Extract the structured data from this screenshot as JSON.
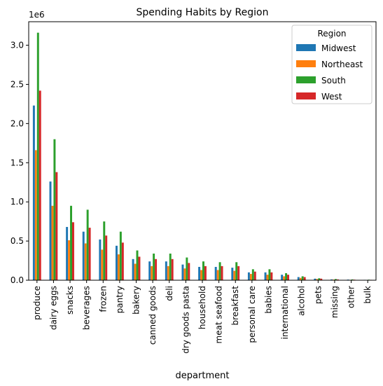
{
  "chart_data": {
    "type": "bar",
    "title": "Spending Habits by Region",
    "xlabel": "department",
    "ylabel": "",
    "y_offset_label": "1e6",
    "ylim": [
      0,
      3.3
    ],
    "yticks": [
      "0.0",
      "0.5",
      "1.0",
      "1.5",
      "2.0",
      "2.5",
      "3.0"
    ],
    "grid": false,
    "legend": {
      "title": "Region",
      "placement": "top-right"
    },
    "categories": [
      "produce",
      "dairy eggs",
      "snacks",
      "beverages",
      "frozen",
      "pantry",
      "bakery",
      "canned goods",
      "deli",
      "dry goods pasta",
      "household",
      "meat seafood",
      "breakfast",
      "personal care",
      "babies",
      "international",
      "alcohol",
      "pets",
      "missing",
      "other",
      "bulk"
    ],
    "series": [
      {
        "name": "Midwest",
        "color": "#1f77b4",
        "values": [
          2.23,
          1.26,
          0.68,
          0.62,
          0.52,
          0.44,
          0.27,
          0.24,
          0.24,
          0.2,
          0.17,
          0.17,
          0.16,
          0.1,
          0.1,
          0.07,
          0.04,
          0.02,
          0.01,
          0.008,
          0.005
        ]
      },
      {
        "name": "Northeast",
        "color": "#ff7f0e",
        "values": [
          1.66,
          0.95,
          0.51,
          0.47,
          0.39,
          0.33,
          0.21,
          0.18,
          0.18,
          0.15,
          0.13,
          0.13,
          0.12,
          0.08,
          0.07,
          0.05,
          0.03,
          0.015,
          0.008,
          0.005,
          0.004
        ]
      },
      {
        "name": "South",
        "color": "#2ca02c",
        "values": [
          3.16,
          1.8,
          0.95,
          0.9,
          0.75,
          0.62,
          0.38,
          0.34,
          0.34,
          0.29,
          0.24,
          0.23,
          0.23,
          0.14,
          0.14,
          0.09,
          0.05,
          0.025,
          0.015,
          0.01,
          0.007
        ]
      },
      {
        "name": "West",
        "color": "#d62728",
        "values": [
          2.42,
          1.38,
          0.74,
          0.67,
          0.57,
          0.48,
          0.3,
          0.27,
          0.27,
          0.22,
          0.18,
          0.18,
          0.18,
          0.11,
          0.1,
          0.07,
          0.04,
          0.02,
          0.01,
          0.007,
          0.005
        ]
      }
    ]
  }
}
